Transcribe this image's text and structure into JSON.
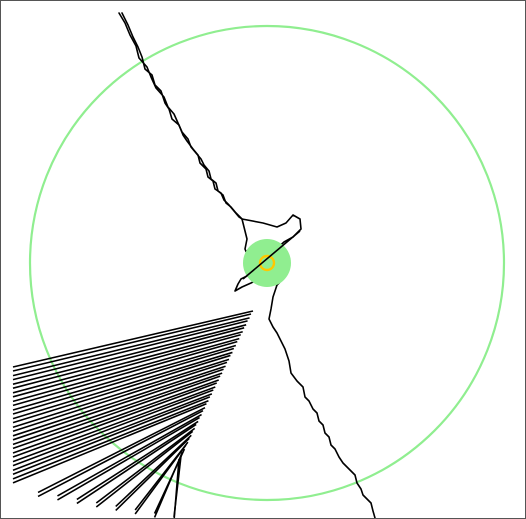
{
  "map": {
    "background": "#ffffff",
    "frame_color": "#555555",
    "line_color": "#000000",
    "buffer_ring_color": "#90ee90",
    "marker_fill_color": "#90ee90",
    "marker_ring_color": "#ffc800"
  }
}
